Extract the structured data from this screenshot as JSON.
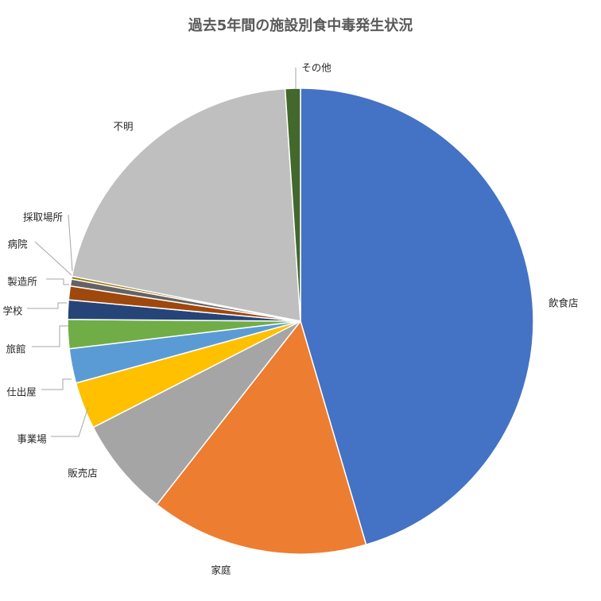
{
  "chart_data": {
    "type": "pie",
    "title": "過去5年間の施設別食中毒発生状況",
    "start_angle_deg": 0,
    "direction": "clockwise",
    "categories": [
      "飲食店",
      "家庭",
      "販売店",
      "事業場",
      "仕出屋",
      "旅館",
      "学校",
      "製造所",
      "病院",
      "採取場所",
      "不明",
      "その他"
    ],
    "values": [
      47.5,
      15.8,
      7.2,
      3.4,
      2.5,
      2.1,
      1.4,
      1.0,
      0.5,
      0.2,
      21.8,
      1.1
    ],
    "colors": [
      "#4472C4",
      "#ED7D31",
      "#A5A5A5",
      "#FFC000",
      "#5B9BD5",
      "#70AD47",
      "#264478",
      "#9E480E",
      "#636363",
      "#997300",
      "#BFBFBF",
      "#43682B"
    ],
    "legend": "none",
    "data_labels": "category names"
  }
}
